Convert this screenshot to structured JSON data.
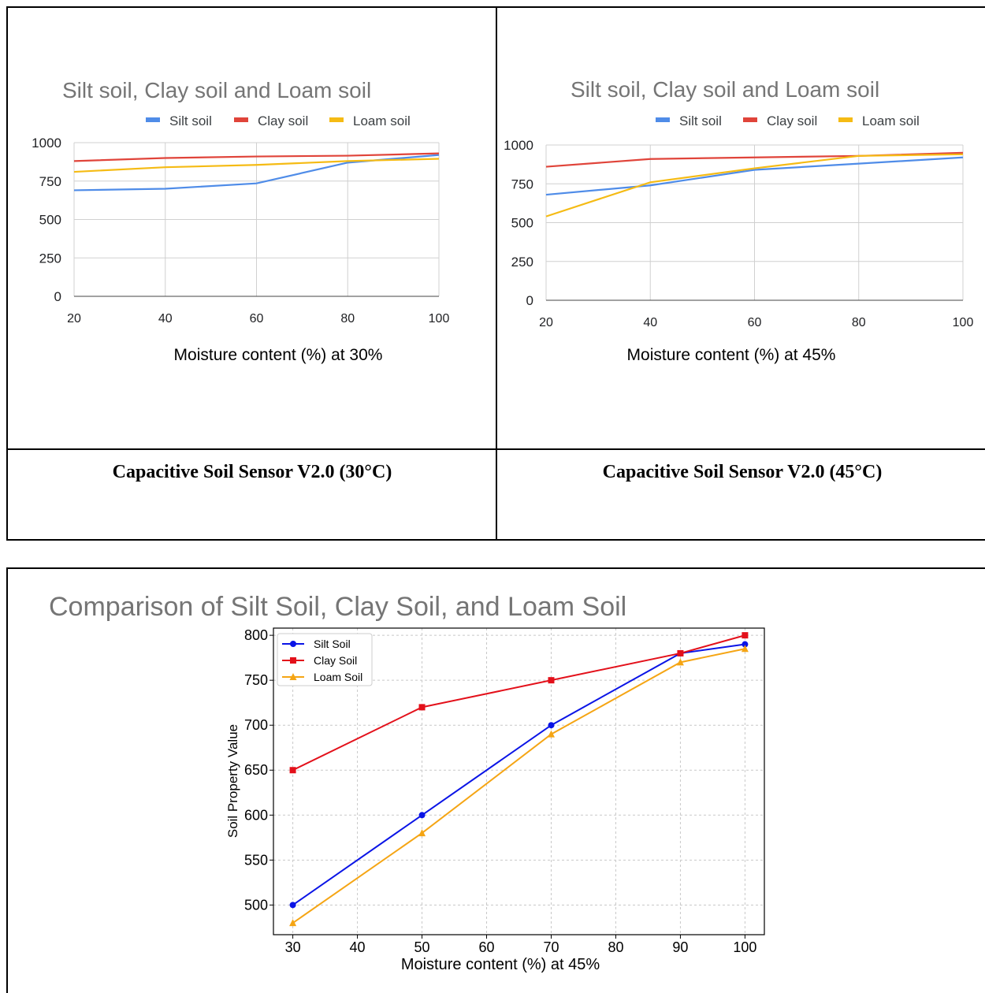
{
  "captions": {
    "left": "Capacitive Soil Sensor V2.0 (30°C)",
    "right": "Capacitive Soil Sensor V2.0 (45°C)"
  },
  "chart_data": [
    {
      "type": "line",
      "title": "Silt soil, Clay soil and Loam soil",
      "xlabel": "Moisture content (%) at 30%",
      "ylabel": "",
      "x": [
        20,
        40,
        60,
        80,
        100
      ],
      "xlim": [
        20,
        100
      ],
      "ylim": [
        0,
        1000
      ],
      "yticks": [
        0,
        250,
        500,
        750,
        1000
      ],
      "grid": true,
      "legend": "top",
      "series": [
        {
          "name": "Silt soil",
          "color": "#4f8ce8",
          "values": [
            690,
            700,
            735,
            870,
            920
          ]
        },
        {
          "name": "Clay soil",
          "color": "#e0443a",
          "values": [
            880,
            900,
            910,
            915,
            930
          ]
        },
        {
          "name": "Loam soil",
          "color": "#f5bb14",
          "values": [
            810,
            840,
            855,
            880,
            895
          ]
        }
      ]
    },
    {
      "type": "line",
      "title": "Silt soil, Clay soil and Loam soil",
      "xlabel": "Moisture content (%) at 45%",
      "ylabel": "",
      "x": [
        20,
        40,
        60,
        80,
        100
      ],
      "xlim": [
        20,
        100
      ],
      "ylim": [
        0,
        1000
      ],
      "yticks": [
        0,
        250,
        500,
        750,
        1000
      ],
      "grid": true,
      "legend": "top",
      "series": [
        {
          "name": "Silt soil",
          "color": "#4f8ce8",
          "values": [
            680,
            740,
            840,
            880,
            920
          ]
        },
        {
          "name": "Clay soil",
          "color": "#e0443a",
          "values": [
            860,
            910,
            920,
            930,
            950
          ]
        },
        {
          "name": "Loam soil",
          "color": "#f5bb14",
          "values": [
            540,
            760,
            850,
            930,
            940
          ]
        }
      ]
    },
    {
      "type": "line",
      "title": "Comparison of Silt Soil, Clay Soil, and Loam Soil",
      "xlabel": "Moisture content (%) at 45%",
      "ylabel": "Soil Property Value",
      "x": [
        30,
        50,
        70,
        90,
        100
      ],
      "xlim": [
        27,
        103
      ],
      "ylim": [
        467,
        808
      ],
      "xticks": [
        30,
        40,
        50,
        60,
        70,
        80,
        90,
        100
      ],
      "yticks": [
        500,
        550,
        600,
        650,
        700,
        750,
        800
      ],
      "grid": true,
      "legend": "top-left",
      "series": [
        {
          "name": "Silt Soil",
          "color": "#0a14e6",
          "marker": "circle",
          "values": [
            500,
            600,
            700,
            780,
            790
          ]
        },
        {
          "name": "Clay Soil",
          "color": "#e3101a",
          "marker": "square",
          "values": [
            650,
            720,
            750,
            780,
            800
          ]
        },
        {
          "name": "Loam Soil",
          "color": "#f5a514",
          "marker": "triangle",
          "values": [
            480,
            580,
            690,
            770,
            785
          ]
        }
      ]
    }
  ]
}
